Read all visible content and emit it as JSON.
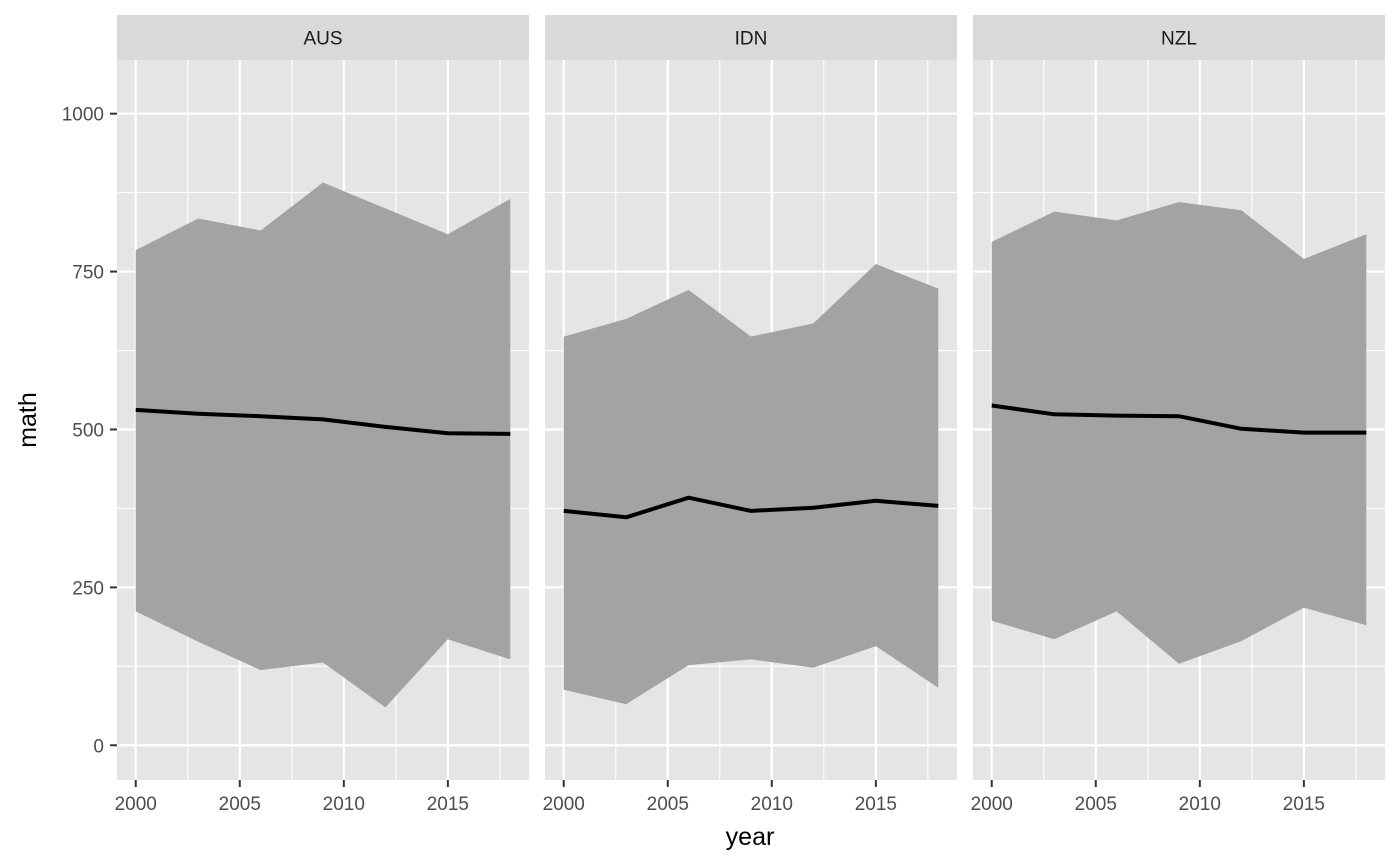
{
  "chart_data": {
    "type": "area",
    "facet_labels": [
      "AUS",
      "IDN",
      "NZL"
    ],
    "xlabel": "year",
    "ylabel": "math",
    "xlim": [
      1999.1,
      2018.9
    ],
    "ylim": [
      -55,
      1085
    ],
    "x_ticks": [
      2000,
      2005,
      2010,
      2015
    ],
    "y_ticks": [
      0,
      250,
      500,
      750,
      1000
    ],
    "grid": true,
    "legend": "none",
    "colors": {
      "panel_bg": "#e5e5e5",
      "strip_bg": "#d9d9d9",
      "ribbon": "#a3a3a3",
      "line": "#000000",
      "grid": "#ffffff"
    },
    "x": [
      2000,
      2003,
      2006,
      2009,
      2012,
      2015,
      2018
    ],
    "panels": [
      {
        "name": "AUS",
        "mean": [
          531,
          525,
          521,
          516,
          504,
          494,
          493
        ],
        "upper": [
          784,
          834,
          815,
          891,
          850,
          809,
          865
        ],
        "lower": [
          212,
          164,
          119,
          131,
          60,
          168,
          136
        ]
      },
      {
        "name": "IDN",
        "mean": [
          371,
          361,
          392,
          371,
          376,
          387,
          379
        ],
        "upper": [
          647,
          675,
          721,
          647,
          668,
          762,
          723
        ],
        "lower": [
          88,
          65,
          127,
          136,
          123,
          157,
          91
        ]
      },
      {
        "name": "NZL",
        "mean": [
          538,
          524,
          522,
          521,
          501,
          495,
          495
        ],
        "upper": [
          797,
          845,
          831,
          860,
          847,
          770,
          809
        ],
        "lower": [
          197,
          168,
          212,
          129,
          165,
          218,
          190
        ]
      }
    ]
  }
}
